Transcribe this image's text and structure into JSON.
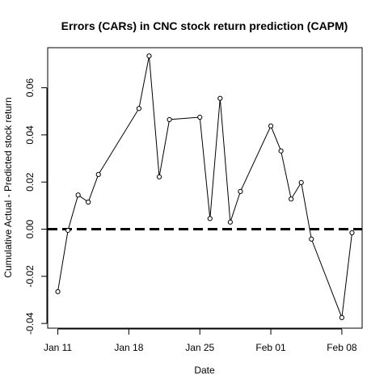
{
  "chart_data": {
    "type": "line",
    "title": "Errors (CARs) in CNC stock return prediction (CAPM)",
    "xlabel": "Date",
    "ylabel": "Cumulative Actual - Predicted stock return",
    "x_ticks": [
      "Jan 11",
      "Jan 18",
      "Jan 25",
      "Feb 01",
      "Feb 08"
    ],
    "y_ticks": [
      "-0.04",
      "-0.02",
      "0.00",
      "0.02",
      "0.04",
      "0.06"
    ],
    "xlim": [
      "2016-01-10",
      "2016-02-10"
    ],
    "ylim": [
      -0.042,
      0.077
    ],
    "reference_line": {
      "y": 0.0,
      "style": "dashed"
    },
    "marker": "open-circle",
    "series": [
      {
        "x": [
          "2016-01-11",
          "2016-01-12",
          "2016-01-13",
          "2016-01-14",
          "2016-01-15",
          "2016-01-19",
          "2016-01-20",
          "2016-01-21",
          "2016-01-22",
          "2016-01-25",
          "2016-01-26",
          "2016-01-27",
          "2016-01-28",
          "2016-01-29",
          "2016-02-01",
          "2016-02-02",
          "2016-02-03",
          "2016-02-04",
          "2016-02-05",
          "2016-02-08",
          "2016-02-09"
        ],
        "values": [
          -0.0265,
          -0.0005,
          0.0145,
          0.0115,
          0.0232,
          0.0512,
          0.0735,
          0.0222,
          0.0465,
          0.0475,
          0.0045,
          0.0555,
          0.003,
          0.016,
          0.0438,
          0.0332,
          0.0128,
          0.0198,
          -0.0042,
          -0.0375,
          -0.0015
        ]
      }
    ]
  }
}
